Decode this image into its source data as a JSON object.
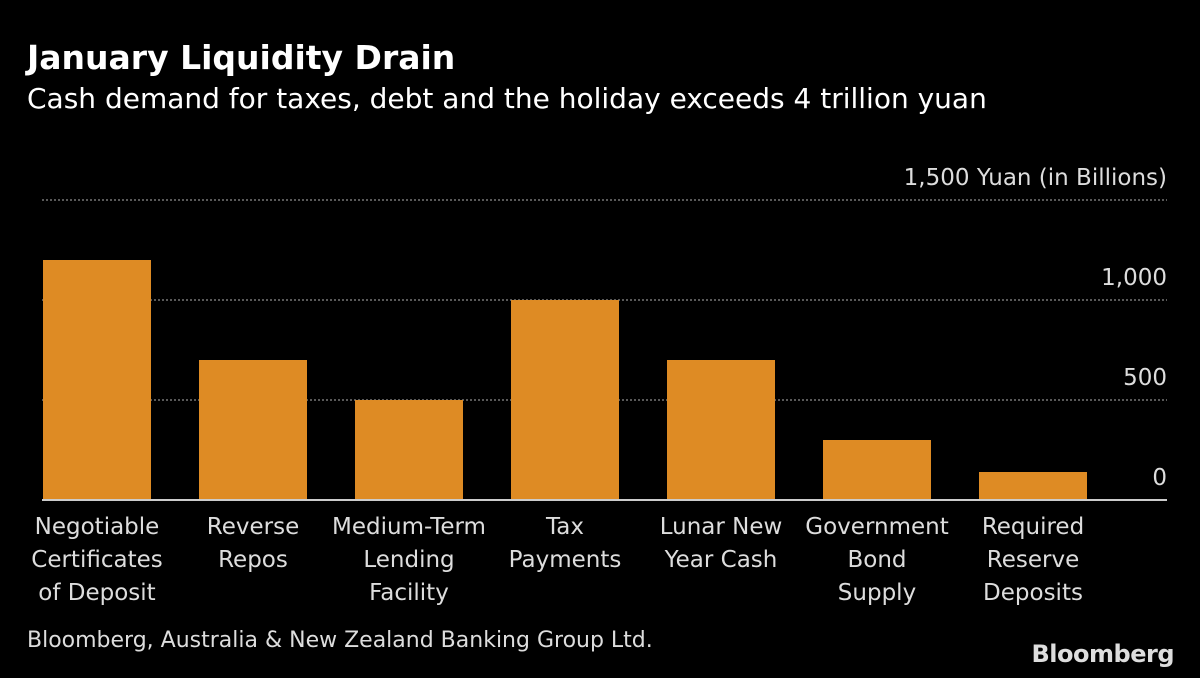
{
  "title": "January Liquidity Drain",
  "subtitle": "Cash demand for taxes, debt and the holiday exceeds 4 trillion yuan",
  "source": "Bloomberg, Australia & New Zealand Banking Group Ltd.",
  "logo": "Bloomberg",
  "chart_data": {
    "type": "bar",
    "title": "January Liquidity Drain",
    "subtitle": "Cash demand for taxes, debt and the holiday exceeds 4 trillion yuan",
    "ylabel": "Yuan (in Billions)",
    "ylim": [
      0,
      1500
    ],
    "yticks": [
      0,
      500,
      1000,
      1500
    ],
    "ytick_labels": [
      "0",
      "500",
      "1,000",
      "1,500 Yuan (in Billions)"
    ],
    "grid": true,
    "yaxis_position": "right",
    "bar_color": "#de8b24",
    "categories": [
      [
        "Negotiable",
        "Certificates",
        "of Deposit"
      ],
      [
        "Reverse",
        "Repos"
      ],
      [
        "Medium-Term",
        "Lending",
        "Facility"
      ],
      [
        "Tax",
        "Payments"
      ],
      [
        "Lunar New",
        "Year Cash"
      ],
      [
        "Government",
        "Bond",
        "Supply"
      ],
      [
        "Required",
        "Reserve",
        "Deposits"
      ]
    ],
    "values": [
      1200,
      700,
      500,
      1000,
      700,
      300,
      140
    ]
  }
}
